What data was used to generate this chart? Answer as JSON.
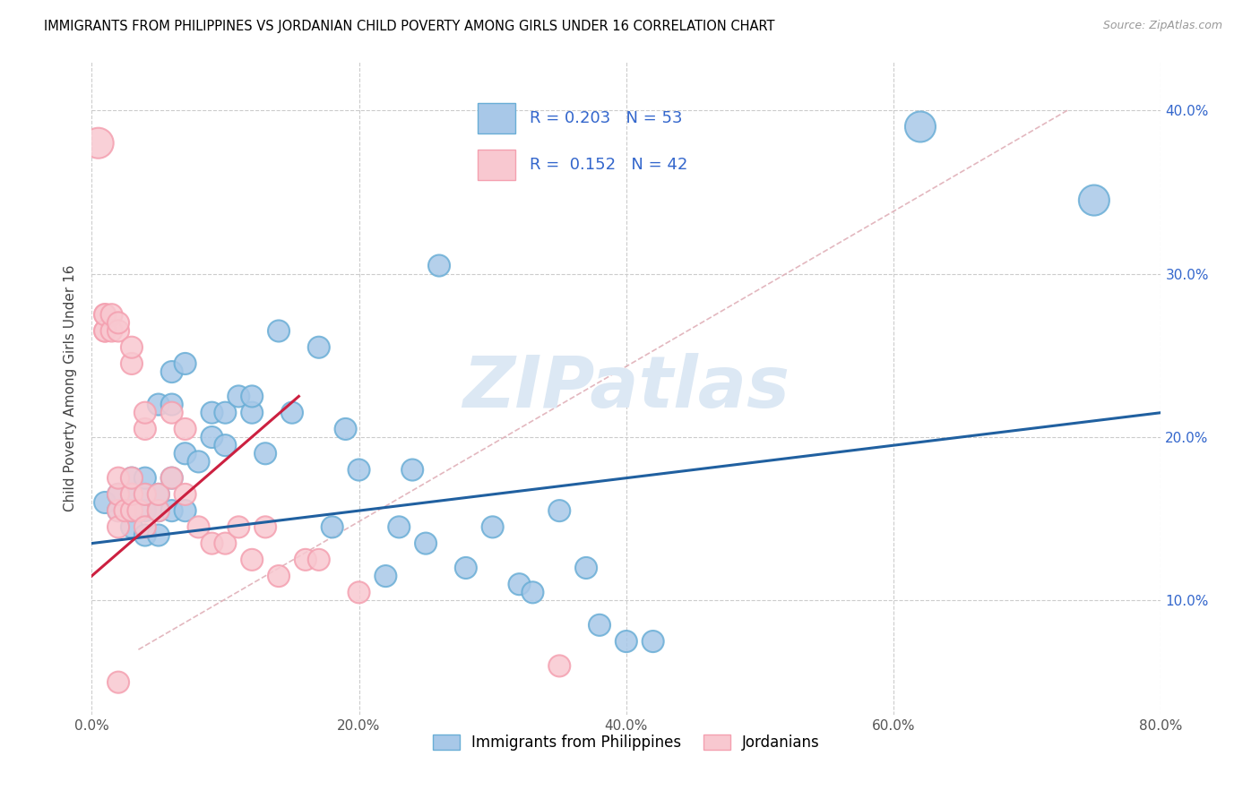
{
  "title": "IMMIGRANTS FROM PHILIPPINES VS JORDANIAN CHILD POVERTY AMONG GIRLS UNDER 16 CORRELATION CHART",
  "source": "Source: ZipAtlas.com",
  "ylabel": "Child Poverty Among Girls Under 16",
  "legend1_r": "0.203",
  "legend1_n": "53",
  "legend2_r": "0.152",
  "legend2_n": "42",
  "blue_color": "#a8c8e8",
  "blue_edge_color": "#6aaed6",
  "pink_color": "#f8c8d0",
  "pink_edge_color": "#f4a0b0",
  "blue_line_color": "#2060a0",
  "pink_line_color": "#cc2040",
  "dash_line_color": "#e0b0b8",
  "legend_text_color": "#3366cc",
  "watermark_color": "#dce8f4",
  "watermark": "ZIPatlas",
  "xlim": [
    0.0,
    0.8
  ],
  "ylim": [
    0.03,
    0.43
  ],
  "xticks": [
    0.0,
    0.2,
    0.4,
    0.6,
    0.8
  ],
  "yticks": [
    0.1,
    0.2,
    0.3,
    0.4
  ],
  "blue_scatter_x": [
    0.01,
    0.02,
    0.02,
    0.03,
    0.03,
    0.03,
    0.03,
    0.04,
    0.04,
    0.04,
    0.04,
    0.05,
    0.05,
    0.05,
    0.05,
    0.06,
    0.06,
    0.06,
    0.06,
    0.07,
    0.07,
    0.07,
    0.08,
    0.09,
    0.09,
    0.1,
    0.1,
    0.11,
    0.12,
    0.12,
    0.13,
    0.14,
    0.15,
    0.17,
    0.18,
    0.19,
    0.2,
    0.22,
    0.23,
    0.24,
    0.25,
    0.26,
    0.28,
    0.3,
    0.32,
    0.33,
    0.35,
    0.37,
    0.38,
    0.4,
    0.42,
    0.62,
    0.75
  ],
  "blue_scatter_y": [
    0.16,
    0.155,
    0.165,
    0.145,
    0.155,
    0.165,
    0.175,
    0.14,
    0.155,
    0.165,
    0.175,
    0.14,
    0.155,
    0.165,
    0.22,
    0.155,
    0.175,
    0.22,
    0.24,
    0.155,
    0.19,
    0.245,
    0.185,
    0.2,
    0.215,
    0.195,
    0.215,
    0.225,
    0.215,
    0.225,
    0.19,
    0.265,
    0.215,
    0.255,
    0.145,
    0.205,
    0.18,
    0.115,
    0.145,
    0.18,
    0.135,
    0.305,
    0.12,
    0.145,
    0.11,
    0.105,
    0.155,
    0.12,
    0.085,
    0.075,
    0.075,
    0.39,
    0.345
  ],
  "pink_scatter_x": [
    0.005,
    0.01,
    0.01,
    0.01,
    0.01,
    0.015,
    0.015,
    0.02,
    0.02,
    0.02,
    0.02,
    0.02,
    0.02,
    0.02,
    0.025,
    0.03,
    0.03,
    0.03,
    0.03,
    0.03,
    0.035,
    0.04,
    0.04,
    0.04,
    0.04,
    0.05,
    0.05,
    0.06,
    0.06,
    0.07,
    0.07,
    0.08,
    0.09,
    0.1,
    0.11,
    0.12,
    0.13,
    0.14,
    0.16,
    0.17,
    0.2,
    0.35
  ],
  "pink_scatter_y": [
    0.38,
    0.265,
    0.275,
    0.265,
    0.275,
    0.265,
    0.275,
    0.265,
    0.27,
    0.155,
    0.165,
    0.175,
    0.145,
    0.05,
    0.155,
    0.245,
    0.155,
    0.165,
    0.175,
    0.255,
    0.155,
    0.165,
    0.205,
    0.145,
    0.215,
    0.155,
    0.165,
    0.175,
    0.215,
    0.165,
    0.205,
    0.145,
    0.135,
    0.135,
    0.145,
    0.125,
    0.145,
    0.115,
    0.125,
    0.125,
    0.105,
    0.06
  ],
  "blue_large_indices": [
    51,
    52
  ],
  "pink_large_indices": [
    0
  ],
  "base_size": 300,
  "large_size": 600,
  "blue_line_x": [
    0.0,
    0.8
  ],
  "blue_line_y": [
    0.135,
    0.215
  ],
  "pink_line_x": [
    0.0,
    0.155
  ],
  "pink_line_y": [
    0.115,
    0.225
  ],
  "dash_line_x": [
    0.035,
    0.73
  ],
  "dash_line_y": [
    0.07,
    0.4
  ]
}
